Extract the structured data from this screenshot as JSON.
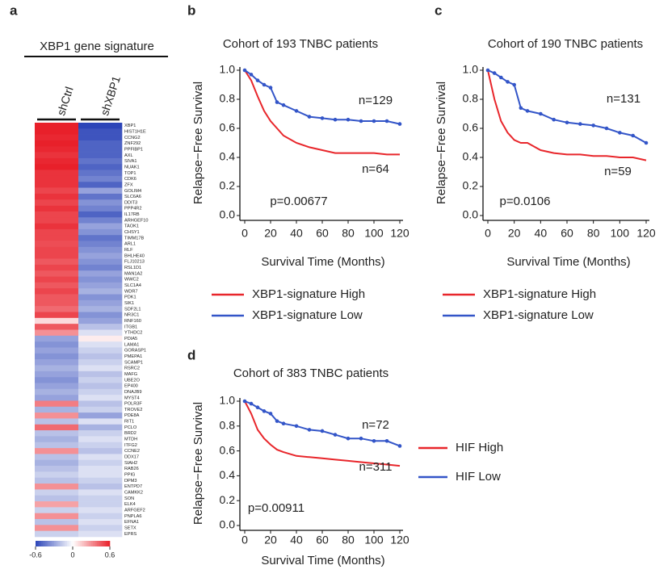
{
  "chart_data": [
    {
      "type": "heatmap",
      "panel": "a",
      "title": "XBP1 gene signature",
      "columns": [
        "shCtrl",
        "shXBP1"
      ],
      "rows": [
        "XBP1",
        "HIST1H1E",
        "CCNG2",
        "ZNF292",
        "PPFIBP1",
        "AXL",
        "SIVA1",
        "NUAK1",
        "TOP1",
        "CDK6",
        "ZFX",
        "GOLIM4",
        "SLC6A6",
        "DDIT3",
        "PPP4R2",
        "IL17RB",
        "ARHGEF10",
        "TAOK1",
        "CHSY1",
        "TIMM17B",
        "ARL1",
        "RLF",
        "BHLHE40",
        "FLJ10213",
        "RSL1D1",
        "MAN1A2",
        "WWC2",
        "SLC1A4",
        "WDR7",
        "PDK1",
        "SIK1",
        "SDF2L1",
        "NR3C1",
        "RNF160",
        "ITGB1",
        "YTHDC2",
        "PDIA5",
        "LAMA1",
        "GORASP1",
        "PMEPA1",
        "SCAMP1",
        "RSRC2",
        "MAFG",
        "UBE2O",
        "EP400",
        "DNAJB9",
        "MYST4",
        "POLR3F",
        "TROVE2",
        "PDE8A",
        "RIT1",
        "PCLO",
        "BRD2",
        "MTDH",
        "ITFG2",
        "CCNE2",
        "DDX17",
        "SIAH2",
        "RAB26",
        "PPIG",
        "DPM3",
        "ENTPD7",
        "CAMKK2",
        "SON",
        "ELK4",
        "ARFGEF2",
        "PNPLA6",
        "EFNA1",
        "SETX",
        "EPRS"
      ],
      "values": [
        [
          0.6,
          -0.6
        ],
        [
          0.6,
          -0.55
        ],
        [
          0.58,
          -0.55
        ],
        [
          0.6,
          -0.5
        ],
        [
          0.58,
          -0.5
        ],
        [
          0.55,
          -0.5
        ],
        [
          0.58,
          -0.45
        ],
        [
          0.6,
          -0.5
        ],
        [
          0.55,
          -0.45
        ],
        [
          0.55,
          -0.4
        ],
        [
          0.55,
          -0.5
        ],
        [
          0.5,
          -0.3
        ],
        [
          0.55,
          -0.45
        ],
        [
          0.5,
          -0.35
        ],
        [
          0.55,
          -0.4
        ],
        [
          0.5,
          -0.5
        ],
        [
          0.5,
          -0.4
        ],
        [
          0.55,
          -0.3
        ],
        [
          0.5,
          -0.35
        ],
        [
          0.5,
          -0.45
        ],
        [
          0.48,
          -0.4
        ],
        [
          0.5,
          -0.35
        ],
        [
          0.5,
          -0.3
        ],
        [
          0.45,
          -0.35
        ],
        [
          0.5,
          -0.4
        ],
        [
          0.45,
          -0.3
        ],
        [
          0.5,
          -0.35
        ],
        [
          0.45,
          -0.3
        ],
        [
          0.5,
          -0.25
        ],
        [
          0.45,
          -0.35
        ],
        [
          0.45,
          -0.3
        ],
        [
          0.4,
          -0.25
        ],
        [
          0.5,
          -0.35
        ],
        [
          0.1,
          -0.3
        ],
        [
          0.45,
          -0.2
        ],
        [
          0.3,
          -0.1
        ],
        [
          -0.3,
          0.05
        ],
        [
          -0.35,
          -0.1
        ],
        [
          -0.3,
          -0.15
        ],
        [
          -0.35,
          -0.2
        ],
        [
          -0.3,
          -0.15
        ],
        [
          -0.25,
          -0.1
        ],
        [
          -0.3,
          -0.2
        ],
        [
          -0.35,
          -0.15
        ],
        [
          -0.3,
          -0.2
        ],
        [
          -0.25,
          -0.15
        ],
        [
          -0.3,
          -0.1
        ],
        [
          0.35,
          -0.2
        ],
        [
          -0.25,
          -0.15
        ],
        [
          0.3,
          -0.3
        ],
        [
          -0.2,
          -0.1
        ],
        [
          0.4,
          -0.25
        ],
        [
          -0.2,
          -0.15
        ],
        [
          -0.25,
          -0.1
        ],
        [
          -0.2,
          -0.15
        ],
        [
          0.3,
          -0.2
        ],
        [
          -0.2,
          -0.1
        ],
        [
          -0.25,
          -0.15
        ],
        [
          -0.2,
          -0.1
        ],
        [
          -0.15,
          -0.1
        ],
        [
          -0.2,
          -0.15
        ],
        [
          0.3,
          -0.2
        ],
        [
          -0.15,
          -0.1
        ],
        [
          -0.2,
          -0.15
        ],
        [
          0.25,
          -0.15
        ],
        [
          -0.15,
          -0.1
        ],
        [
          0.3,
          -0.15
        ],
        [
          -0.2,
          -0.1
        ],
        [
          0.3,
          -0.15
        ],
        [
          -0.15,
          -0.1
        ]
      ],
      "zlim": [
        -0.6,
        0.6
      ],
      "colorbar_ticks": [
        -0.6,
        0,
        0.6
      ],
      "low_color": "#2c45b8",
      "mid_color": "#ffffff",
      "high_color": "#e8202a"
    },
    {
      "type": "line",
      "panel": "b",
      "title": "Cohort of 193 TNBC patients",
      "x_label": "Survival Time (Months)",
      "y_label": "Relapse−Free Survival",
      "x": [
        0,
        5,
        10,
        15,
        20,
        25,
        30,
        40,
        50,
        60,
        70,
        80,
        90,
        100,
        110,
        120
      ],
      "series": [
        {
          "name": "XBP1-signature High",
          "color": "#e8262b",
          "markers": false,
          "values": [
            1,
            0.93,
            0.82,
            0.72,
            0.65,
            0.6,
            0.55,
            0.5,
            0.47,
            0.45,
            0.43,
            0.43,
            0.43,
            0.43,
            0.42,
            0.42
          ]
        },
        {
          "name": "XBP1-signature Low",
          "color": "#3355c8",
          "markers": true,
          "values": [
            1,
            0.97,
            0.93,
            0.9,
            0.88,
            0.78,
            0.76,
            0.72,
            0.68,
            0.67,
            0.66,
            0.66,
            0.65,
            0.65,
            0.65,
            0.63
          ]
        }
      ],
      "annotations": [
        "n=129",
        "n=64",
        "p=0.00677"
      ],
      "xlim": [
        0,
        120
      ],
      "xticks": [
        0,
        20,
        40,
        60,
        80,
        100,
        120
      ],
      "ylim": [
        0,
        1
      ],
      "yticks": [
        {
          "value": 0,
          "label": "0.0"
        },
        0.2,
        0.4,
        0.6,
        0.8,
        {
          "value": 1,
          "label": "1.0"
        }
      ],
      "legend": "bottom"
    },
    {
      "type": "line",
      "panel": "c",
      "title": "Cohort of 190 TNBC patients",
      "x_label": "Survival Time (Months)",
      "y_label": "Relapse−Free Survival",
      "x": [
        0,
        5,
        10,
        15,
        20,
        25,
        30,
        40,
        50,
        60,
        70,
        80,
        90,
        100,
        110,
        120
      ],
      "series": [
        {
          "name": "XBP1-signature High",
          "color": "#e8262b",
          "markers": false,
          "values": [
            1,
            0.8,
            0.65,
            0.57,
            0.52,
            0.5,
            0.5,
            0.45,
            0.43,
            0.42,
            0.42,
            0.41,
            0.41,
            0.4,
            0.4,
            0.38
          ]
        },
        {
          "name": "XBP1-signature Low",
          "color": "#3355c8",
          "markers": true,
          "values": [
            1,
            0.98,
            0.95,
            0.92,
            0.9,
            0.74,
            0.72,
            0.7,
            0.66,
            0.64,
            0.63,
            0.62,
            0.6,
            0.57,
            0.55,
            0.5
          ]
        }
      ],
      "annotations": [
        "n=131",
        "n=59",
        "p=0.0106"
      ],
      "xlim": [
        0,
        120
      ],
      "xticks": [
        0,
        20,
        40,
        60,
        80,
        100,
        120
      ],
      "ylim": [
        0,
        1
      ],
      "yticks": [
        {
          "value": 0,
          "label": "0.0"
        },
        0.2,
        0.4,
        0.6,
        0.8,
        {
          "value": 1,
          "label": "1.0"
        }
      ],
      "legend": "bottom"
    },
    {
      "type": "line",
      "panel": "d",
      "title": "Cohort of 383 TNBC patients",
      "x_label": "Survival Time (Months)",
      "y_label": "Relapse−Free Survival",
      "x": [
        0,
        5,
        10,
        15,
        20,
        25,
        30,
        40,
        50,
        60,
        70,
        80,
        90,
        100,
        110,
        120
      ],
      "series": [
        {
          "name": "HIF High",
          "color": "#e8262b",
          "markers": false,
          "values": [
            1,
            0.9,
            0.77,
            0.7,
            0.65,
            0.61,
            0.59,
            0.56,
            0.55,
            0.54,
            0.53,
            0.52,
            0.51,
            0.5,
            0.49,
            0.48
          ]
        },
        {
          "name": "HIF Low",
          "color": "#3355c8",
          "markers": true,
          "values": [
            1,
            0.98,
            0.95,
            0.92,
            0.9,
            0.84,
            0.82,
            0.8,
            0.77,
            0.76,
            0.73,
            0.7,
            0.7,
            0.68,
            0.68,
            0.64
          ]
        }
      ],
      "annotations": [
        "n=72",
        "n=311",
        "p=0.00911"
      ],
      "xlim": [
        0,
        120
      ],
      "xticks": [
        0,
        20,
        40,
        60,
        80,
        100,
        120
      ],
      "ylim": [
        0,
        1
      ],
      "yticks": [
        {
          "value": 0,
          "label": "0.0"
        },
        0.2,
        0.4,
        0.6,
        0.8,
        {
          "value": 1,
          "label": "1.0"
        }
      ],
      "legend": "right"
    }
  ]
}
